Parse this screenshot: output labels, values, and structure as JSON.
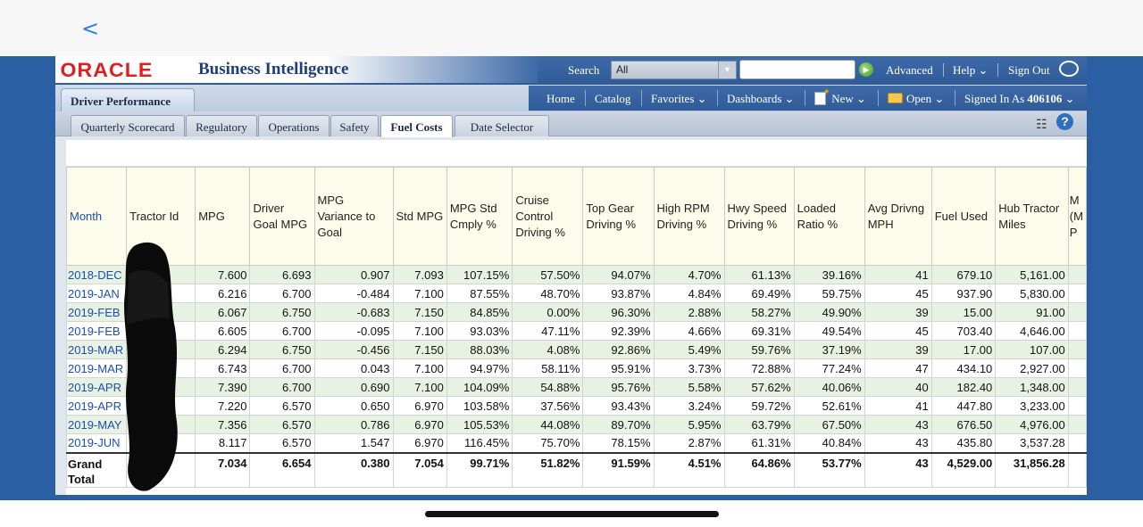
{
  "ios": {
    "back_glyph": "<"
  },
  "header": {
    "logo": "ORACLE",
    "app_title": "Business Intelligence",
    "search_label": "Search",
    "search_scope": "All",
    "advanced": "Advanced",
    "help": "Help",
    "sign_out": "Sign Out"
  },
  "nav": {
    "dashboard_name": "Driver Performance",
    "home": "Home",
    "catalog": "Catalog",
    "favorites": "Favorites",
    "dashboards": "Dashboards",
    "new": "New",
    "open": "Open",
    "signed_in_as": "Signed In As",
    "user": "406106"
  },
  "tabs": [
    {
      "label": "Quarterly Scorecard"
    },
    {
      "label": "Regulatory"
    },
    {
      "label": "Operations"
    },
    {
      "label": "Safety"
    },
    {
      "label": "Fuel Costs",
      "active": true
    },
    {
      "label": "Date Selector"
    }
  ],
  "table": {
    "headers": [
      "Month",
      "Tractor Id",
      "MPG",
      "Driver Goal MPG",
      "MPG Variance to Goal",
      "Std MPG",
      "MPG Std Cmply %",
      "Cruise Control Driving %",
      "Top Gear Driving %",
      "High RPM Driving %",
      "Hwy Speed Driving %",
      "Loaded Ratio %",
      "Avg Drivng MPH",
      "Fuel Used",
      "Hub Tractor Miles",
      "M (M P"
    ],
    "rows": [
      [
        "2018-DEC",
        "",
        "7.600",
        "6.693",
        "0.907",
        "7.093",
        "107.15%",
        "57.50%",
        "94.07%",
        "4.70%",
        "61.13%",
        "39.16%",
        "41",
        "679.10",
        "5,161.00"
      ],
      [
        "2019-JAN",
        "",
        "6.216",
        "6.700",
        "-0.484",
        "7.100",
        "87.55%",
        "48.70%",
        "93.87%",
        "4.84%",
        "69.49%",
        "59.75%",
        "45",
        "937.90",
        "5,830.00"
      ],
      [
        "2019-FEB",
        "",
        "6.067",
        "6.750",
        "-0.683",
        "7.150",
        "84.85%",
        "0.00%",
        "96.30%",
        "2.88%",
        "58.27%",
        "49.90%",
        "39",
        "15.00",
        "91.00"
      ],
      [
        "2019-FEB",
        "",
        "6.605",
        "6.700",
        "-0.095",
        "7.100",
        "93.03%",
        "47.11%",
        "92.39%",
        "4.66%",
        "69.31%",
        "49.54%",
        "45",
        "703.40",
        "4,646.00"
      ],
      [
        "2019-MAR",
        "",
        "6.294",
        "6.750",
        "-0.456",
        "7.150",
        "88.03%",
        "4.08%",
        "92.86%",
        "5.49%",
        "59.76%",
        "37.19%",
        "39",
        "17.00",
        "107.00"
      ],
      [
        "2019-MAR",
        "",
        "6.743",
        "6.700",
        "0.043",
        "7.100",
        "94.97%",
        "58.11%",
        "95.91%",
        "3.73%",
        "72.88%",
        "77.24%",
        "47",
        "434.10",
        "2,927.00"
      ],
      [
        "2019-APR",
        "",
        "7.390",
        "6.700",
        "0.690",
        "7.100",
        "104.09%",
        "54.88%",
        "95.76%",
        "5.58%",
        "57.62%",
        "40.06%",
        "40",
        "182.40",
        "1,348.00"
      ],
      [
        "2019-APR",
        "",
        "7.220",
        "6.570",
        "0.650",
        "6.970",
        "103.58%",
        "37.56%",
        "93.43%",
        "3.24%",
        "59.72%",
        "52.61%",
        "41",
        "447.80",
        "3,233.00"
      ],
      [
        "2019-MAY",
        "",
        "7.356",
        "6.570",
        "0.786",
        "6.970",
        "105.53%",
        "44.08%",
        "89.70%",
        "5.95%",
        "63.79%",
        "67.50%",
        "43",
        "676.50",
        "4,976.00"
      ],
      [
        "2019-JUN",
        "",
        "8.117",
        "6.570",
        "1.547",
        "6.970",
        "116.45%",
        "75.70%",
        "78.15%",
        "2.87%",
        "61.31%",
        "40.84%",
        "43",
        "435.80",
        "3,537.28"
      ]
    ],
    "grand_total": [
      "Grand Total",
      "",
      "7.034",
      "6.654",
      "0.380",
      "7.054",
      "99.71%",
      "51.82%",
      "91.59%",
      "4.51%",
      "64.86%",
      "53.77%",
      "43",
      "4,529.00",
      "31,856.28"
    ]
  }
}
